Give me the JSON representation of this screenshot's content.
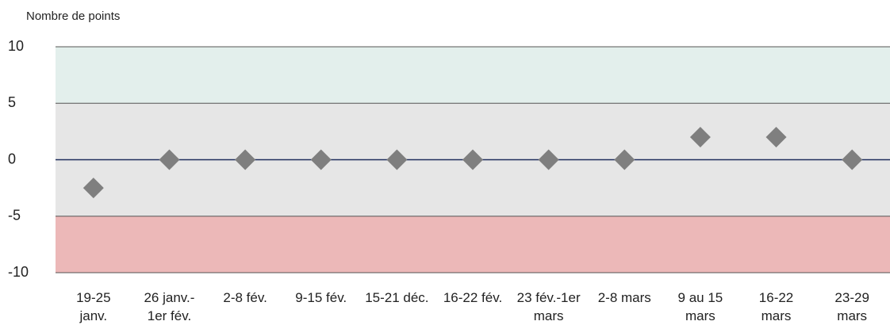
{
  "chart_data": {
    "type": "dot",
    "y_label": "Nombre de points",
    "categories": [
      "19-25\njanv.",
      "26 janv.-\n1er fév.",
      "2-8 fév.",
      "9-15 fév.",
      "15-21 déc.",
      "16-22 fév.",
      "23 fév.-1er\nmars",
      "2-8 mars",
      "9 au 15\nmars",
      "16-22\nmars",
      "23-29\nmars"
    ],
    "values": [
      -2.5,
      0,
      0,
      0,
      0,
      0,
      0,
      0,
      2,
      2,
      0
    ],
    "color": "#7f7f7f",
    "ylim": [
      -10,
      10
    ],
    "yticks": [
      -10,
      -5,
      0,
      5,
      10
    ],
    "grid": true,
    "grid_color": "#555555",
    "zero_line_color": "#1f2d5c",
    "bands": [
      {
        "from": 5,
        "to": 10,
        "color": "#e3efec"
      },
      {
        "from": -5,
        "to": 5,
        "color": "#e6e6e6"
      },
      {
        "from": -10,
        "to": -5,
        "color": "#ecb8b8"
      }
    ]
  }
}
